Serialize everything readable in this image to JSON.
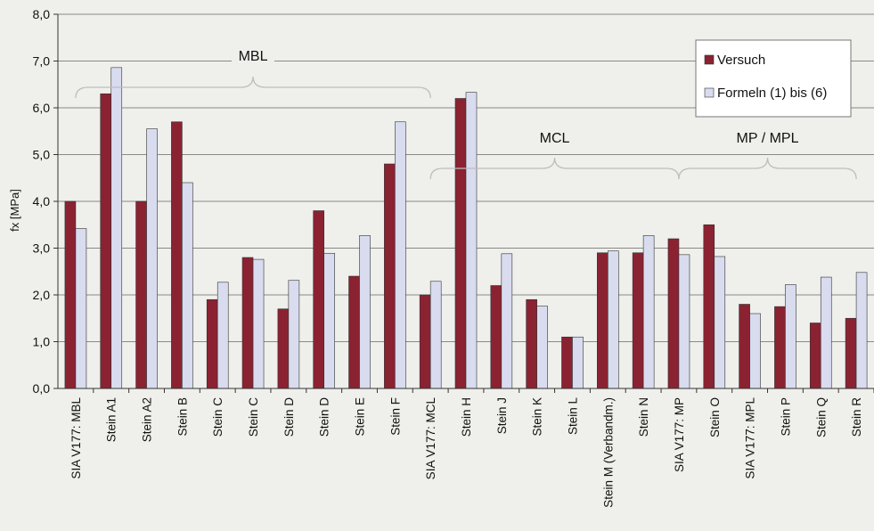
{
  "chart_data": {
    "type": "bar",
    "ylabel": "fx [MPa]",
    "ylim": [
      0,
      8
    ],
    "yticks": [
      "0,0",
      "1,0",
      "2,0",
      "3,0",
      "4,0",
      "5,0",
      "6,0",
      "7,0",
      "8,0"
    ],
    "grid": true,
    "legend_position": "top-right",
    "categories": [
      "SIA V177: MBL",
      "Stein A1",
      "Stein A2",
      "Stein B",
      "Stein C",
      "Stein C",
      "Stein D",
      "Stein D",
      "Stein E",
      "Stein F",
      "SIA V177: MCL",
      "Stein H",
      "Stein J",
      "Stein K",
      "Stein L",
      "Stein M (Verbandm.)",
      "Stein N",
      "SIA V177: MP",
      "Stein O",
      "SIA V177: MPL",
      "Stein P",
      "Stein Q",
      "Stein R"
    ],
    "series": [
      {
        "name": "Versuch",
        "color": "#8b2232",
        "values": [
          4.0,
          6.3,
          4.0,
          5.7,
          1.9,
          2.8,
          1.7,
          3.8,
          2.4,
          4.8,
          2.0,
          6.2,
          2.2,
          1.9,
          1.1,
          2.9,
          2.9,
          3.2,
          3.5,
          1.8,
          1.75,
          1.4,
          1.5
        ]
      },
      {
        "name": "Formeln (1) bis (6)",
        "color": "#d9dcef",
        "values": [
          3.42,
          6.86,
          5.55,
          4.4,
          2.27,
          2.76,
          2.31,
          2.89,
          3.27,
          5.7,
          2.29,
          6.33,
          2.88,
          1.76,
          1.1,
          2.94,
          3.27,
          2.86,
          2.82,
          1.6,
          2.22,
          2.38,
          2.48
        ]
      }
    ],
    "annotations": [
      {
        "text": "MBL",
        "from_index": 0,
        "to_index": 10
      },
      {
        "text": "MCL",
        "from_index": 10,
        "to_index": 17
      },
      {
        "text": "MP / MPL",
        "from_index": 17,
        "to_index": 22
      }
    ]
  }
}
